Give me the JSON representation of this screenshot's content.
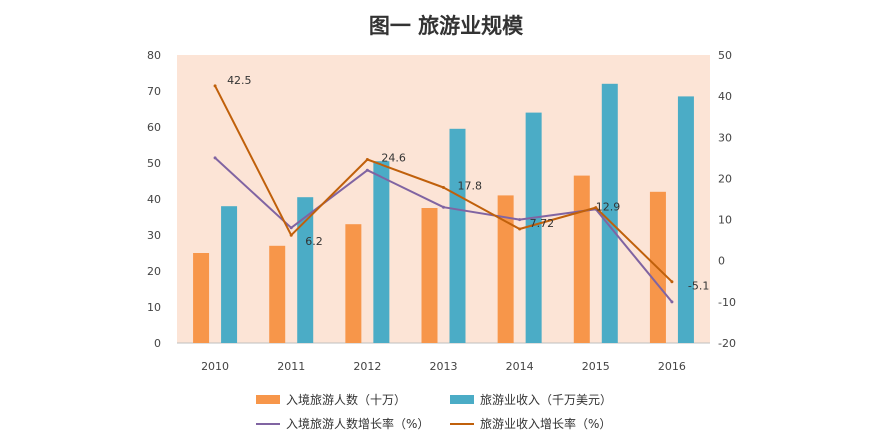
{
  "chart_data": {
    "type": "bar",
    "title": "图一 旅游业规模",
    "categories": [
      "2010",
      "2011",
      "2012",
      "2013",
      "2014",
      "2015",
      "2016"
    ],
    "y_left": {
      "ylim": [
        0,
        80
      ],
      "ticks": [
        "0",
        "10",
        "20",
        "30",
        "40",
        "50",
        "60",
        "70",
        "80"
      ]
    },
    "y_right": {
      "ylim": [
        -20,
        50
      ],
      "ticks": [
        "-20",
        "-10",
        "0",
        "10",
        "20",
        "30",
        "40",
        "50"
      ]
    },
    "legend_position": "bottom",
    "grid": false,
    "series": [
      {
        "name": "入境旅游人数（十万）",
        "type": "bar",
        "axis": "left",
        "color": "#F7964A",
        "values": [
          25,
          27,
          33,
          37.5,
          41,
          46.5,
          42
        ]
      },
      {
        "name": "旅游业收入（千万美元）",
        "type": "bar",
        "axis": "left",
        "color": "#4BACC6",
        "values": [
          38,
          40.5,
          50.5,
          59.5,
          64,
          72,
          68.5
        ]
      },
      {
        "name": "入境旅游人数增长率（%）",
        "type": "line",
        "axis": "right",
        "color": "#8064A2",
        "values": [
          25,
          8,
          22,
          13,
          10,
          12.5,
          -10
        ]
      },
      {
        "name": "旅游业收入增长率（%）",
        "type": "line",
        "axis": "right",
        "color": "#C0600B",
        "values": [
          42.5,
          6.2,
          24.6,
          17.8,
          7.72,
          12.9,
          -5.1
        ],
        "data_labels": [
          "42.5",
          "6.2",
          "24.6",
          "17.8",
          "7.72",
          "12.9",
          "-5.1"
        ]
      }
    ],
    "colors": {
      "plot_background": "#FCE4D6"
    }
  }
}
